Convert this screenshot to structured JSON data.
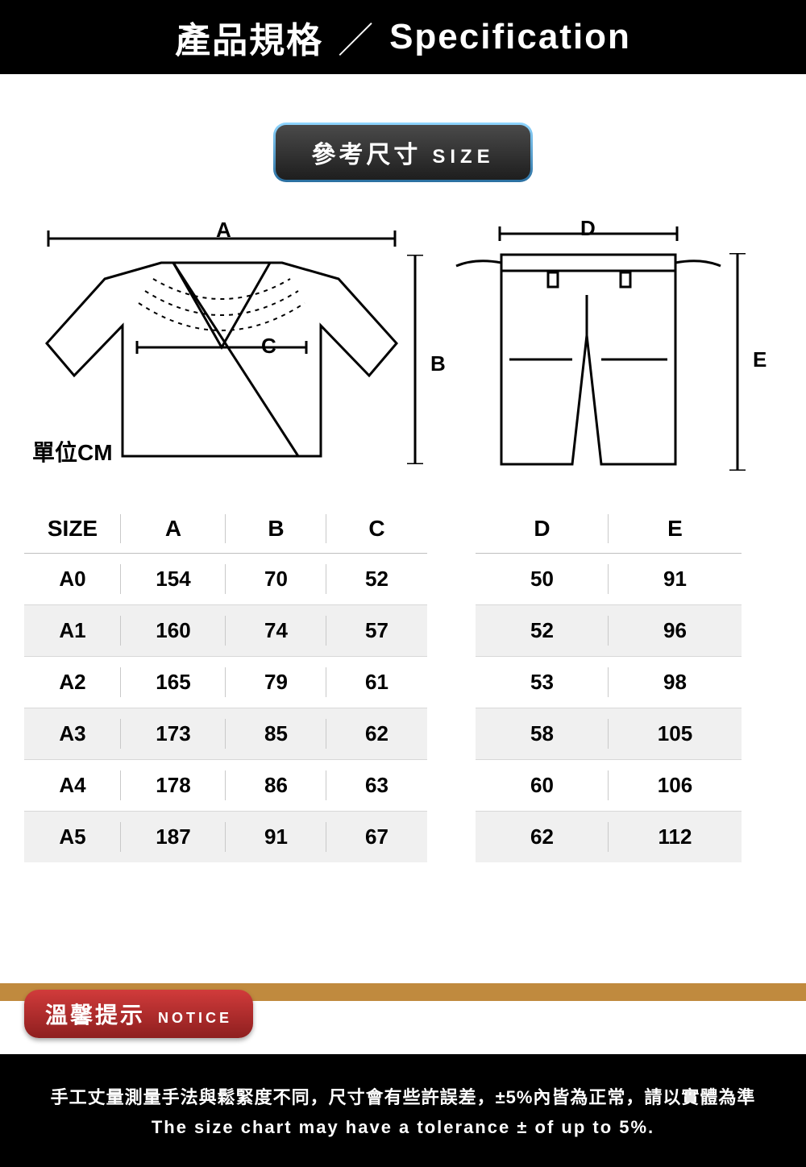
{
  "header": {
    "zh": "產品規格",
    "en": "Specification"
  },
  "sizePill": {
    "zh": "參考尺寸",
    "en": "SIZE"
  },
  "unit": "單位CM",
  "dims": {
    "A": "A",
    "B": "B",
    "C": "C",
    "D": "D",
    "E": "E"
  },
  "tableLeft": {
    "columns": [
      "SIZE",
      "A",
      "B",
      "C"
    ],
    "rows": [
      [
        "A0",
        "154",
        "70",
        "52"
      ],
      [
        "A1",
        "160",
        "74",
        "57"
      ],
      [
        "A2",
        "165",
        "79",
        "61"
      ],
      [
        "A3",
        "173",
        "85",
        "62"
      ],
      [
        "A4",
        "178",
        "86",
        "63"
      ],
      [
        "A5",
        "187",
        "91",
        "67"
      ]
    ],
    "col_widths": [
      "24%",
      "26%",
      "25%",
      "25%"
    ]
  },
  "tableRight": {
    "columns": [
      "D",
      "E"
    ],
    "rows": [
      [
        "50",
        "91"
      ],
      [
        "52",
        "96"
      ],
      [
        "53",
        "98"
      ],
      [
        "58",
        "105"
      ],
      [
        "60",
        "106"
      ],
      [
        "62",
        "112"
      ]
    ],
    "col_widths": [
      "50%",
      "50%"
    ]
  },
  "notice": {
    "zh": "溫馨提示",
    "en": "NOTICE"
  },
  "footer": {
    "zh": "手工丈量測量手法與鬆緊度不同，尺寸會有些許誤差，±5%內皆為正常，請以實體為準",
    "en": "The size chart may have a tolerance ± of up to 5%."
  },
  "colors": {
    "black": "#000000",
    "white": "#ffffff",
    "gold": "#c08a3e",
    "red1": "#d13b3b",
    "red2": "#8e1f1f",
    "grey_row": "#f0f0f0",
    "grey_line": "#c9c9c9",
    "pill_border_top": "#8fd6ff",
    "pill_border_bot": "#2a6fa0",
    "pill_bg_top": "#4a4a4a",
    "pill_bg_bot": "#1e1e1e"
  }
}
